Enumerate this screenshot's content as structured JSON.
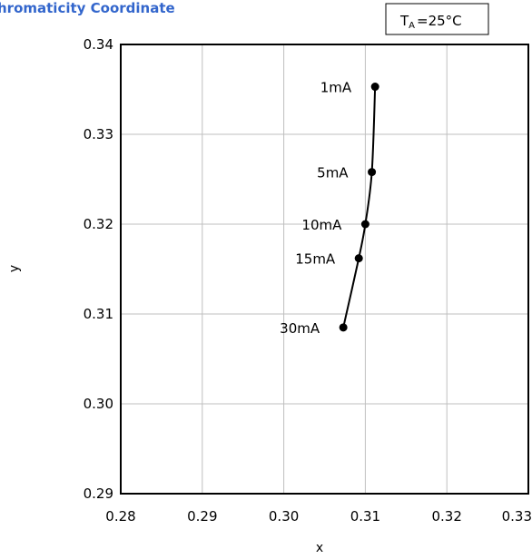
{
  "chart_data": {
    "type": "line",
    "title": "Chromaticity Coordinate",
    "title_color": "#3366cc",
    "condition": {
      "symbol": "T",
      "subscript": "A",
      "value": "=25°C"
    },
    "xlabel": "x",
    "ylabel": "y",
    "xlim": [
      0.28,
      0.33
    ],
    "ylim": [
      0.29,
      0.34
    ],
    "x_ticks": [
      "0.28",
      "0.29",
      "0.30",
      "0.31",
      "0.32",
      "0.33"
    ],
    "y_ticks": [
      "0.34",
      "0.33",
      "0.32",
      "0.31",
      "0.30",
      "0.29"
    ],
    "grid": true,
    "series": [
      {
        "color": "#000000",
        "points": [
          {
            "label": "1mA",
            "x": 0.3112,
            "y": 0.3353
          },
          {
            "label": "5mA",
            "x": 0.3108,
            "y": 0.3258
          },
          {
            "label": "10mA",
            "x": 0.31,
            "y": 0.32
          },
          {
            "label": "15mA",
            "x": 0.3092,
            "y": 0.3162
          },
          {
            "label": "30mA",
            "x": 0.3073,
            "y": 0.3085
          }
        ]
      }
    ]
  }
}
